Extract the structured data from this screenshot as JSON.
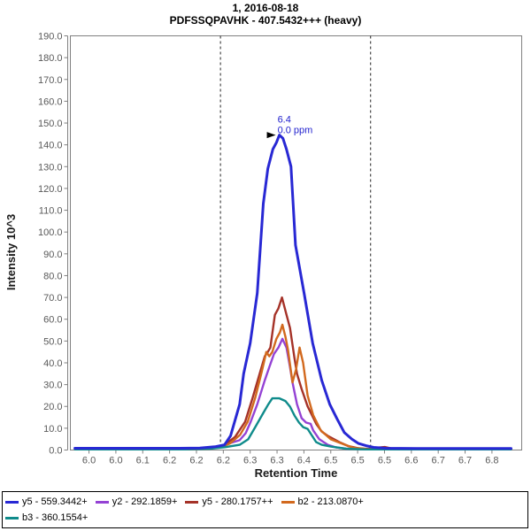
{
  "title": {
    "line1": "1, 2016-08-18",
    "line2": "PDFSSQPAVHK - 407.5432+++ (heavy)"
  },
  "colors": {
    "frame": "#808080",
    "tick_label": "#595959",
    "axis_title": "#1a1a1a",
    "boundary_line": "#222222",
    "annotation": "#2121CE",
    "arrow": "#000000"
  },
  "chart_data": {
    "type": "line",
    "title": "1, 2016-08-18",
    "subtitle": "PDFSSQPAVHK - 407.5432+++ (heavy)",
    "xlabel": "Retention Time",
    "ylabel": "Intensity 10^3",
    "xlim": [
      5.963,
      6.859
    ],
    "ylim": [
      0,
      190
    ],
    "grid": false,
    "legend_position": "bottom",
    "x_tick_labels": [
      "6.0",
      "6.0",
      "6.1",
      "6.2",
      "6.2",
      "6.2",
      "6.3",
      "6.3",
      "6.4",
      "6.5",
      "6.5",
      "6.5",
      "6.6",
      "6.7",
      "6.7",
      "6.8"
    ],
    "x_tick_start_rt": 6.0,
    "x_tick_step_rt": 0.05333,
    "y_tick_labels": [
      "0.0",
      "10.0",
      "20.0",
      "30.0",
      "40.0",
      "50.0",
      "60.0",
      "70.0",
      "80.0",
      "90.0",
      "100.0",
      "110.0",
      "120.0",
      "130.0",
      "140.0",
      "150.0",
      "160.0",
      "170.0",
      "180.0",
      "190.0"
    ],
    "y_tick_values": [
      0,
      10,
      20,
      30,
      40,
      50,
      60,
      70,
      80,
      90,
      100,
      110,
      120,
      130,
      140,
      150,
      160,
      170,
      180,
      190
    ],
    "peak_annotation": {
      "label": "6.4",
      "sublabel": "0.0 ppm",
      "rt": 6.383,
      "intensity": 144.5
    },
    "integration_boundaries": {
      "start_rt": 6.261,
      "end_rt": 6.559
    },
    "series": [
      {
        "name": "y5 - 559.3442+",
        "color": "#2828D4",
        "width": 3,
        "z": 5,
        "legend_row": 0,
        "points": [
          [
            5.972,
            0.8
          ],
          [
            6.1,
            0.8
          ],
          [
            6.18,
            0.8
          ],
          [
            6.22,
            0.9
          ],
          [
            6.25,
            1.5
          ],
          [
            6.269,
            2.4
          ],
          [
            6.281,
            6.5
          ],
          [
            6.299,
            21
          ],
          [
            6.307,
            35
          ],
          [
            6.32,
            49
          ],
          [
            6.334,
            72
          ],
          [
            6.346,
            113
          ],
          [
            6.355,
            129
          ],
          [
            6.365,
            138
          ],
          [
            6.372,
            141
          ],
          [
            6.378,
            144.5
          ],
          [
            6.385,
            143
          ],
          [
            6.392,
            138
          ],
          [
            6.401,
            130
          ],
          [
            6.41,
            94
          ],
          [
            6.427,
            72
          ],
          [
            6.444,
            49
          ],
          [
            6.462,
            32
          ],
          [
            6.478,
            21
          ],
          [
            6.492,
            14.5
          ],
          [
            6.507,
            8
          ],
          [
            6.522,
            5
          ],
          [
            6.535,
            3
          ],
          [
            6.55,
            2
          ],
          [
            6.565,
            1.2
          ],
          [
            6.59,
            0.8
          ],
          [
            6.65,
            0.7
          ],
          [
            6.72,
            0.7
          ],
          [
            6.8,
            0.7
          ],
          [
            6.838,
            0.7
          ]
        ]
      },
      {
        "name": "y2 - 292.1859+",
        "color": "#9442D4",
        "width": 2.4,
        "z": 1,
        "legend_row": 0,
        "points": [
          [
            5.972,
            0.4
          ],
          [
            6.17,
            0.4
          ],
          [
            6.22,
            0.6
          ],
          [
            6.25,
            1.2
          ],
          [
            6.275,
            2.8
          ],
          [
            6.299,
            4.5
          ],
          [
            6.311,
            7.7
          ],
          [
            6.321,
            13
          ],
          [
            6.334,
            21
          ],
          [
            6.349,
            32
          ],
          [
            6.358,
            38
          ],
          [
            6.367,
            44
          ],
          [
            6.376,
            47
          ],
          [
            6.384,
            51
          ],
          [
            6.392,
            47
          ],
          [
            6.399,
            38
          ],
          [
            6.404,
            31
          ],
          [
            6.413,
            21
          ],
          [
            6.422,
            14.6
          ],
          [
            6.431,
            12.6
          ],
          [
            6.44,
            12
          ],
          [
            6.445,
            9
          ],
          [
            6.457,
            5
          ],
          [
            6.474,
            2.4
          ],
          [
            6.49,
            1.2
          ],
          [
            6.51,
            0.6
          ],
          [
            6.55,
            0.4
          ],
          [
            6.65,
            0.4
          ],
          [
            6.75,
            0.4
          ],
          [
            6.838,
            0.4
          ]
        ]
      },
      {
        "name": "y5 - 280.1757++",
        "color": "#A53228",
        "width": 2.4,
        "z": 2,
        "legend_row": 0,
        "points": [
          [
            5.972,
            0.3
          ],
          [
            6.15,
            0.3
          ],
          [
            6.21,
            0.4
          ],
          [
            6.25,
            1
          ],
          [
            6.27,
            2.5
          ],
          [
            6.29,
            6
          ],
          [
            6.31,
            13
          ],
          [
            6.325,
            24
          ],
          [
            6.34,
            36
          ],
          [
            6.349,
            43
          ],
          [
            6.355,
            45
          ],
          [
            6.36,
            47
          ],
          [
            6.369,
            62
          ],
          [
            6.376,
            65
          ],
          [
            6.383,
            70
          ],
          [
            6.391,
            63
          ],
          [
            6.399,
            56
          ],
          [
            6.408,
            42
          ],
          [
            6.413,
            35
          ],
          [
            6.422,
            28
          ],
          [
            6.434,
            20
          ],
          [
            6.451,
            12
          ],
          [
            6.462,
            8.5
          ],
          [
            6.474,
            6.5
          ],
          [
            6.497,
            3.6
          ],
          [
            6.515,
            1.8
          ],
          [
            6.535,
            0.8
          ],
          [
            6.555,
            0.5
          ],
          [
            6.572,
            1.1
          ],
          [
            6.587,
            1.4
          ],
          [
            6.605,
            0.5
          ],
          [
            6.68,
            0.3
          ],
          [
            6.78,
            0.3
          ],
          [
            6.838,
            0.3
          ]
        ]
      },
      {
        "name": "b2 - 213.0870+",
        "color": "#D2691E",
        "width": 2.4,
        "z": 3,
        "legend_row": 0,
        "points": [
          [
            5.972,
            0.3
          ],
          [
            6.18,
            0.3
          ],
          [
            6.23,
            0.5
          ],
          [
            6.26,
            1.2
          ],
          [
            6.28,
            3
          ],
          [
            6.3,
            7
          ],
          [
            6.315,
            13
          ],
          [
            6.33,
            24
          ],
          [
            6.343,
            36
          ],
          [
            6.352,
            45
          ],
          [
            6.358,
            43
          ],
          [
            6.364,
            45
          ],
          [
            6.372,
            51
          ],
          [
            6.379,
            54
          ],
          [
            6.384,
            57.5
          ],
          [
            6.39,
            52
          ],
          [
            6.395,
            46
          ],
          [
            6.404,
            31
          ],
          [
            6.411,
            37
          ],
          [
            6.418,
            47
          ],
          [
            6.425,
            40
          ],
          [
            6.434,
            25
          ],
          [
            6.445,
            16
          ],
          [
            6.46,
            9
          ],
          [
            6.48,
            4.9
          ],
          [
            6.504,
            2.8
          ],
          [
            6.525,
            1
          ],
          [
            6.55,
            0.4
          ],
          [
            6.62,
            0.3
          ],
          [
            6.73,
            0.3
          ],
          [
            6.838,
            0.3
          ]
        ]
      },
      {
        "name": "b3 - 360.1554+",
        "color": "#0F8B8B",
        "width": 2.4,
        "z": 4,
        "legend_row": 1,
        "points": [
          [
            5.972,
            0.3
          ],
          [
            6.19,
            0.3
          ],
          [
            6.24,
            0.6
          ],
          [
            6.27,
            1.3
          ],
          [
            6.299,
            2.4
          ],
          [
            6.316,
            4.9
          ],
          [
            6.33,
            10.5
          ],
          [
            6.346,
            17
          ],
          [
            6.356,
            21
          ],
          [
            6.364,
            23.7
          ],
          [
            6.378,
            23.7
          ],
          [
            6.39,
            22.5
          ],
          [
            6.399,
            19.9
          ],
          [
            6.408,
            15.8
          ],
          [
            6.417,
            12.6
          ],
          [
            6.425,
            10.5
          ],
          [
            6.434,
            9.7
          ],
          [
            6.443,
            6.5
          ],
          [
            6.451,
            3.6
          ],
          [
            6.462,
            2.4
          ],
          [
            6.48,
            1.6
          ],
          [
            6.51,
            0.6
          ],
          [
            6.55,
            0.3
          ],
          [
            6.65,
            0.3
          ],
          [
            6.75,
            0.3
          ],
          [
            6.838,
            0.3
          ]
        ]
      }
    ]
  }
}
